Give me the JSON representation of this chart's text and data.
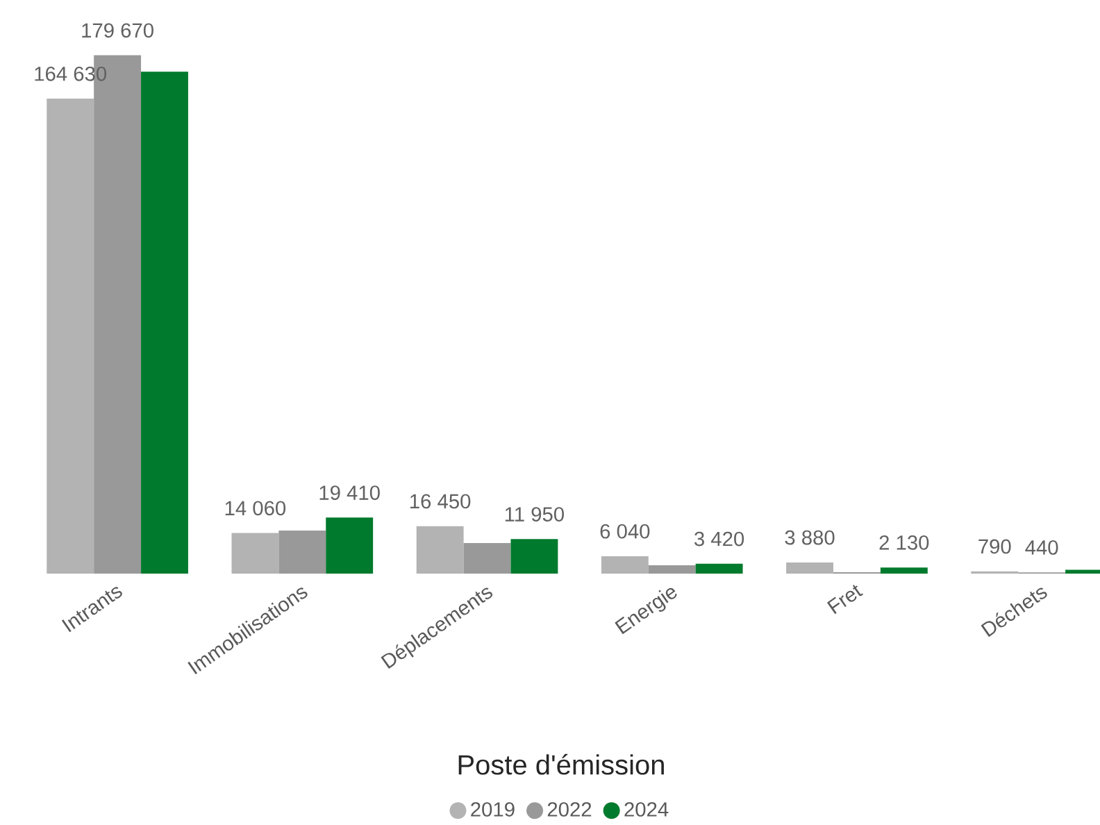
{
  "chart_data": {
    "type": "bar",
    "xlabel": "Poste d'émission",
    "categories": [
      "Intrants",
      "Immobilisations",
      "Déplacements",
      "Energie",
      "Fret",
      "Déchets"
    ],
    "series": [
      {
        "name": "2019",
        "color": "#b3b3b3",
        "values": [
          164630,
          14060,
          16450,
          6040,
          3880,
          790
        ],
        "value_labels": [
          "164 630",
          "14 060",
          "16 450",
          "6 040",
          "3 880",
          "790"
        ]
      },
      {
        "name": "2022",
        "color": "#999999",
        "values": [
          179670,
          14900,
          10600,
          2900,
          500,
          440
        ],
        "value_labels": [
          "179 670",
          null,
          null,
          null,
          null,
          "440"
        ]
      },
      {
        "name": "2024",
        "color": "#007a2d",
        "values": [
          174000,
          19410,
          11950,
          3420,
          2130,
          1300
        ],
        "value_labels": [
          null,
          "19 410",
          "11 950",
          "3 420",
          "2 130",
          null
        ]
      }
    ],
    "legend": "bottom"
  }
}
